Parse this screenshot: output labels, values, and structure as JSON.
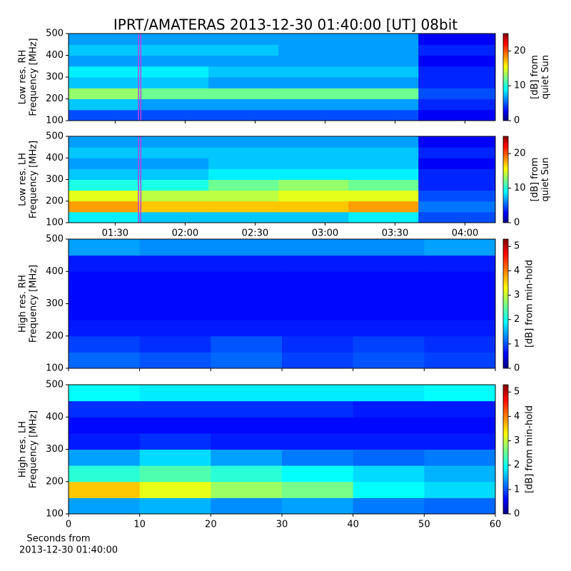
{
  "chart_data": [
    {
      "type": "heatmap",
      "title": "IPRT/AMATERAS 2013-12-30 01:40:00 [UT]   08bit",
      "ylabel": [
        "Low res. RH",
        "Frequency [MHz]"
      ],
      "xlim": [
        "01:10",
        "04:13"
      ],
      "xticks": [
        "01:30",
        "02:00",
        "02:30",
        "03:00",
        "03:30",
        "04:00"
      ],
      "show_xticklabels": false,
      "xbins": [
        "01:10",
        "01:40",
        "02:10",
        "02:40",
        "03:10",
        "03:40",
        "04:13"
      ],
      "ylim": [
        100,
        500
      ],
      "yticks": [
        100,
        200,
        300,
        400,
        500
      ],
      "ybins": [
        100,
        150,
        200,
        250,
        300,
        350,
        400,
        450,
        500
      ],
      "window": [
        "01:40",
        "01:41"
      ],
      "window_color": "#c040e0",
      "z": [
        [
          5,
          5,
          5,
          5,
          5,
          3
        ],
        [
          8,
          7,
          7,
          7,
          7,
          4
        ],
        [
          13,
          12,
          12,
          12,
          12,
          5
        ],
        [
          8,
          8,
          7,
          7,
          7,
          4
        ],
        [
          9,
          9,
          8,
          8,
          8,
          4
        ],
        [
          7,
          7,
          7,
          7,
          7,
          3
        ],
        [
          8,
          8,
          8,
          7,
          7,
          4
        ],
        [
          7,
          7,
          7,
          7,
          7,
          3
        ]
      ],
      "clim": [
        0,
        25
      ],
      "cticks": [
        0,
        10,
        20
      ],
      "clabel": [
        "[dB] from",
        "quiet Sun"
      ]
    },
    {
      "type": "heatmap",
      "ylabel": [
        "Low res. LH",
        "Frequency [MHz]"
      ],
      "xlim": [
        "01:10",
        "04:13"
      ],
      "xticks": [
        "01:30",
        "02:00",
        "02:30",
        "03:00",
        "03:30",
        "04:00"
      ],
      "show_xticklabels": true,
      "xbins": [
        "01:10",
        "01:40",
        "02:10",
        "02:40",
        "03:10",
        "03:40",
        "04:13"
      ],
      "ylim": [
        100,
        500
      ],
      "yticks": [
        100,
        200,
        300,
        400,
        500
      ],
      "ybins": [
        100,
        150,
        200,
        250,
        300,
        350,
        400,
        450,
        500
      ],
      "window": [
        "01:40",
        "01:41"
      ],
      "window_color": "#c040e0",
      "z": [
        [
          9,
          8,
          8,
          8,
          9,
          5
        ],
        [
          18,
          17,
          17,
          17,
          18,
          6
        ],
        [
          15,
          14,
          14,
          15,
          15,
          5
        ],
        [
          10,
          10,
          12,
          13,
          12,
          4
        ],
        [
          8,
          8,
          9,
          9,
          9,
          4
        ],
        [
          7,
          7,
          8,
          8,
          8,
          3
        ],
        [
          8,
          8,
          8,
          8,
          8,
          4
        ],
        [
          7,
          7,
          7,
          7,
          7,
          3
        ]
      ],
      "clim": [
        0,
        25
      ],
      "cticks": [
        0,
        10,
        20
      ],
      "clabel": [
        "[dB] from",
        "quiet Sun"
      ]
    },
    {
      "type": "heatmap",
      "ylabel": [
        "High res. RH",
        "Frequency [MHz]"
      ],
      "xlim": [
        0,
        60
      ],
      "xticks": [
        0,
        10,
        20,
        30,
        40,
        50,
        60
      ],
      "show_xticklabels": false,
      "xbins": [
        0,
        10,
        20,
        30,
        40,
        50,
        60
      ],
      "ylim": [
        100,
        500
      ],
      "yticks": [
        100,
        200,
        300,
        400,
        500
      ],
      "ybins": [
        100,
        150,
        200,
        250,
        300,
        350,
        400,
        450,
        500
      ],
      "z": [
        [
          1.2,
          1.1,
          1.2,
          1.0,
          1.1,
          1.0
        ],
        [
          1.0,
          0.9,
          1.1,
          0.9,
          1.0,
          0.9
        ],
        [
          0.8,
          0.8,
          0.8,
          0.8,
          0.8,
          0.8
        ],
        [
          0.7,
          0.7,
          0.7,
          0.7,
          0.7,
          0.7
        ],
        [
          0.7,
          0.7,
          0.7,
          0.7,
          0.7,
          0.7
        ],
        [
          0.7,
          0.7,
          0.7,
          0.7,
          0.7,
          0.7
        ],
        [
          0.8,
          0.8,
          0.8,
          0.8,
          0.8,
          0.8
        ],
        [
          1.5,
          1.4,
          1.4,
          1.4,
          1.4,
          1.5
        ]
      ],
      "clim": [
        0,
        5.3
      ],
      "cticks": [
        0,
        1,
        2,
        3,
        4,
        5
      ],
      "clabel": [
        "[dB] from min-hold"
      ]
    },
    {
      "type": "heatmap",
      "ylabel": [
        "High res. LH",
        "Frequency [MHz]"
      ],
      "xlim": [
        0,
        60
      ],
      "xticks": [
        0,
        10,
        20,
        30,
        40,
        50,
        60
      ],
      "show_xticklabels": true,
      "xbins": [
        0,
        10,
        20,
        30,
        40,
        50,
        60
      ],
      "xlabel": [
        "Seconds from",
        "2013-12-30 01:40:00"
      ],
      "ylim": [
        100,
        500
      ],
      "yticks": [
        100,
        200,
        300,
        400,
        500
      ],
      "ybins": [
        100,
        150,
        200,
        250,
        300,
        350,
        400,
        450,
        500
      ],
      "z": [
        [
          1.5,
          1.6,
          1.4,
          1.5,
          1.3,
          1.2
        ],
        [
          3.6,
          3.2,
          2.8,
          2.6,
          2.0,
          1.8
        ],
        [
          2.2,
          2.4,
          2.2,
          2.0,
          1.8,
          1.6
        ],
        [
          1.5,
          1.8,
          1.5,
          1.3,
          1.2,
          1.3
        ],
        [
          0.8,
          0.9,
          0.8,
          0.8,
          0.8,
          0.8
        ],
        [
          0.7,
          0.7,
          0.7,
          0.7,
          0.7,
          0.7
        ],
        [
          0.9,
          0.9,
          0.9,
          0.9,
          0.8,
          0.8
        ],
        [
          2.0,
          1.9,
          1.9,
          1.9,
          1.9,
          2.0
        ]
      ],
      "clim": [
        0,
        5.3
      ],
      "cticks": [
        0,
        1,
        2,
        3,
        4,
        5
      ],
      "clabel": [
        "[dB] from min-hold"
      ]
    }
  ]
}
